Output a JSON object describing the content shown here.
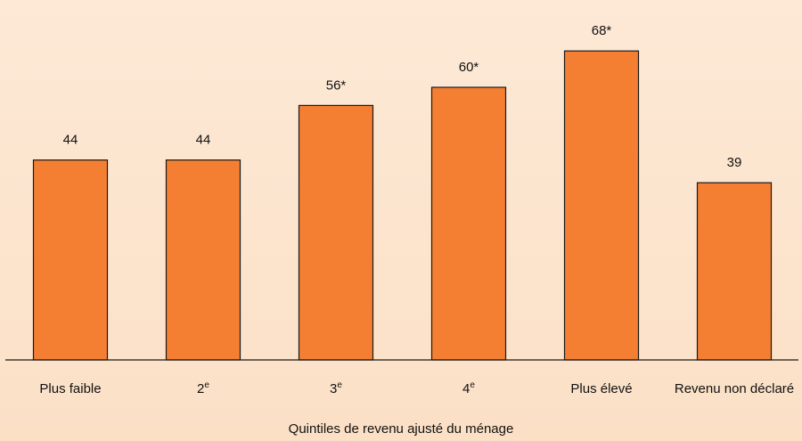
{
  "chart_data": {
    "type": "bar",
    "categories": [
      {
        "label": "Plus faible",
        "sup": ""
      },
      {
        "label": "2",
        "sup": "e"
      },
      {
        "label": "3",
        "sup": "e"
      },
      {
        "label": "4",
        "sup": "e"
      },
      {
        "label": "Plus élevé",
        "sup": ""
      },
      {
        "label": "Revenu non déclaré",
        "sup": ""
      }
    ],
    "values": [
      44,
      44,
      56,
      60,
      68,
      39
    ],
    "value_labels": [
      "44",
      "44",
      "56*",
      "60*",
      "68*",
      "39"
    ],
    "xlabel": "Quintiles de revenu ajusté du ménage",
    "ylabel": "",
    "ylim": [
      0,
      70
    ],
    "grid": false,
    "colors": {
      "bar": "#f47f32",
      "background": "#fde9d6"
    }
  }
}
